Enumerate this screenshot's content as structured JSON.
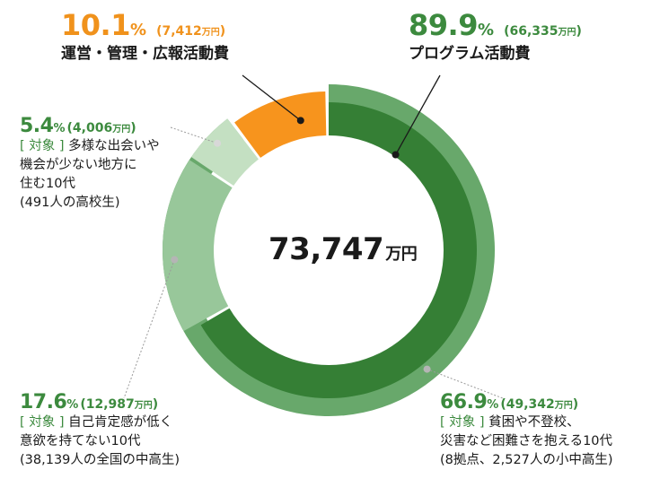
{
  "chart_data": {
    "type": "pie",
    "center_label": {
      "value": "73,747",
      "unit": "万円"
    },
    "outer_ring": [
      {
        "name": "運営・管理・広報活動費",
        "percent": 10.1,
        "amount": "7,412",
        "color": "#f7941d"
      },
      {
        "name": "プログラム活動費",
        "percent": 89.9,
        "amount": "66,335",
        "color": "#68a86b"
      }
    ],
    "program_breakdown": [
      {
        "percent": 66.9,
        "amount": "49,342",
        "color": "#357f35",
        "tag": "[ 対象 ]",
        "desc_lines": [
          "貧困や不登校、",
          "災害など困難さを抱える10代",
          "(8拠点、2,527人の小中高生)"
        ]
      },
      {
        "percent": 17.6,
        "amount": "12,987",
        "color": "#98c79a",
        "tag": "[ 対象 ]",
        "desc_lines": [
          "自己肯定感が低く",
          "意欲を持てない10代",
          "(38,139人の全国の中高生)"
        ]
      },
      {
        "percent": 5.4,
        "amount": "4,006",
        "color": "#c4e0c2",
        "tag": "[ 対象 ]",
        "desc_lines": [
          "多様な出会いや",
          "機会が少ない地方に",
          "住む10代",
          "(491人の高校生)"
        ]
      }
    ],
    "units": {
      "percent": "%",
      "amount": "万円"
    }
  }
}
